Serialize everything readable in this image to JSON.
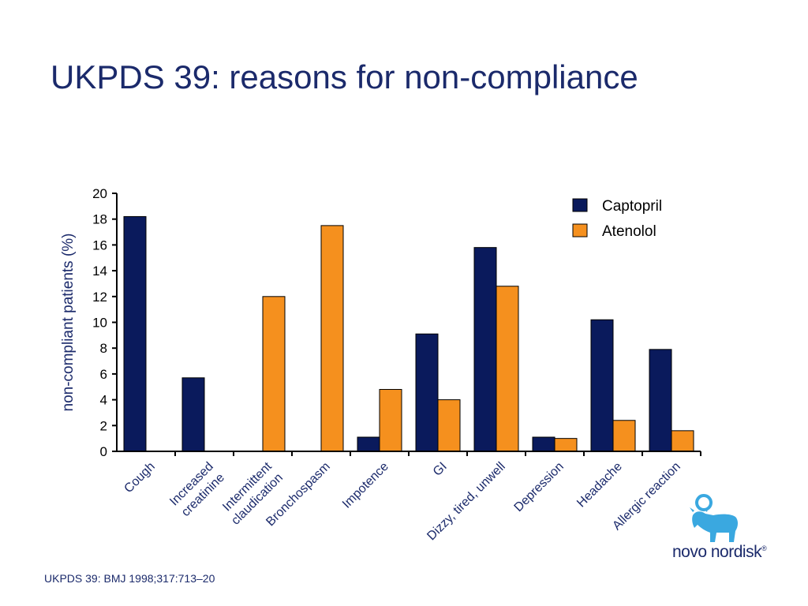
{
  "slide": {
    "title": "UKPDS 39: reasons for non-compliance",
    "footer": "UKPDS 39: BMJ 1998;317:713–20",
    "logo_text": "novo nordisk",
    "logo_mark": "®"
  },
  "colors": {
    "captopril": "#0a1a5c",
    "atenolol": "#f5901e",
    "text": "#1b2a6b"
  },
  "chart_data": {
    "type": "bar",
    "title": "",
    "xlabel": "",
    "ylabel": "non-compliant patients (%)",
    "ylim": [
      0,
      20
    ],
    "yticks": [
      0,
      2,
      4,
      6,
      8,
      10,
      12,
      14,
      16,
      18,
      20
    ],
    "categories": [
      [
        "Cough"
      ],
      [
        "Increased",
        "creatinine"
      ],
      [
        "Intermittent",
        "claudication"
      ],
      [
        "Bronchospasm"
      ],
      [
        "Impotence"
      ],
      [
        "GI"
      ],
      [
        "Dizzy, tired, unwell"
      ],
      [
        "Depression"
      ],
      [
        "Headache"
      ],
      [
        "Allergic reaction"
      ]
    ],
    "series": [
      {
        "name": "Captopril",
        "values": [
          18.2,
          5.7,
          0,
          0,
          1.1,
          9.1,
          15.8,
          1.1,
          10.2,
          7.9
        ]
      },
      {
        "name": "Atenolol",
        "values": [
          0,
          0,
          12.0,
          17.5,
          4.8,
          4.0,
          12.8,
          1.0,
          2.4,
          1.6
        ]
      }
    ],
    "legend_position": "top-right"
  }
}
